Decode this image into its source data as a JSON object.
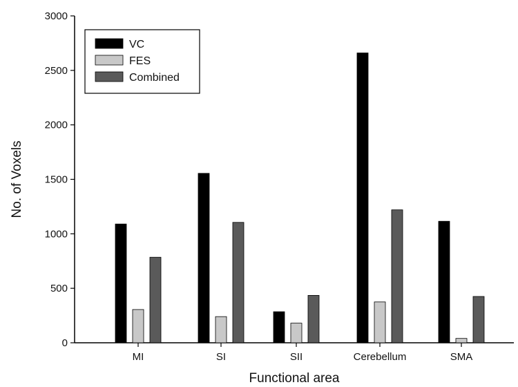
{
  "chart_data": {
    "type": "bar",
    "title": "",
    "xlabel": "Functional area",
    "ylabel": "No. of Voxels",
    "categories": [
      "MI",
      "SI",
      "SII",
      "Cerebellum",
      "SMA"
    ],
    "ylim": [
      0,
      3000
    ],
    "yticks": [
      0,
      500,
      1000,
      1500,
      2000,
      2500,
      3000
    ],
    "grid": false,
    "legend_position": "top-left",
    "series": [
      {
        "name": "VC",
        "color": "#000000",
        "values": [
          1090,
          1555,
          285,
          2660,
          1115
        ]
      },
      {
        "name": "FES",
        "color": "#c8c8c8",
        "values": [
          305,
          240,
          180,
          375,
          40
        ]
      },
      {
        "name": "Combined",
        "color": "#5a5a5a",
        "values": [
          785,
          1105,
          435,
          1220,
          425
        ]
      }
    ]
  }
}
